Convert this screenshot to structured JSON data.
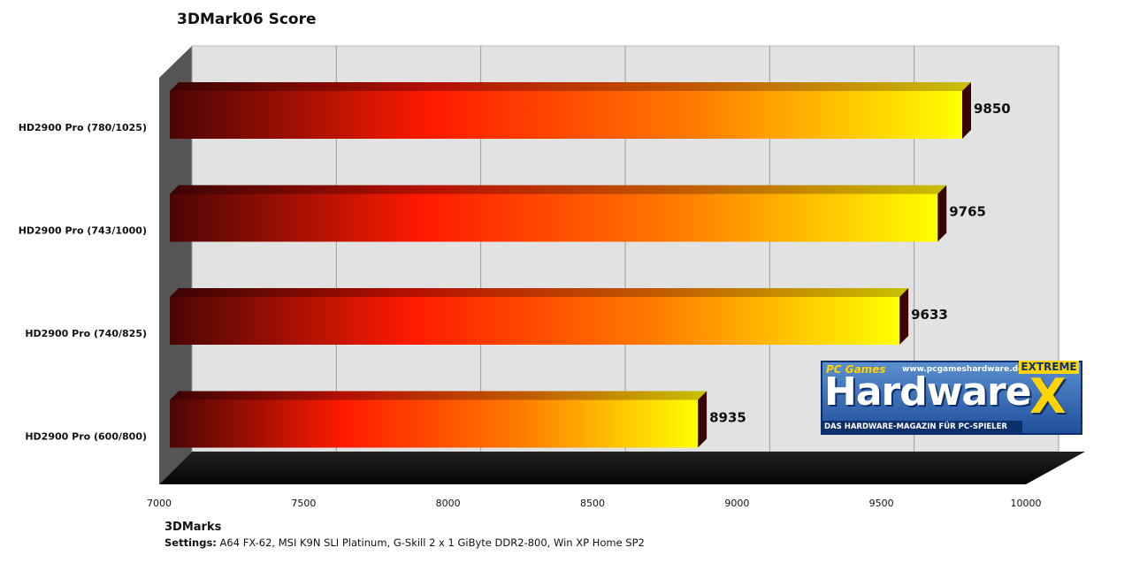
{
  "chart_data": {
    "type": "bar",
    "orientation": "horizontal",
    "style": "3d",
    "title": "3DMark06 Score",
    "xlabel": "3DMarks",
    "categories": [
      "HD2900 Pro (780/1025)",
      "HD2900 Pro (743/1000)",
      "HD2900 Pro (740/825)",
      "HD2900 Pro (600/800)"
    ],
    "values": [
      9850,
      9765,
      9633,
      8935
    ],
    "data_labels": [
      "9850",
      "9765",
      "9633",
      "8935"
    ],
    "xlim": [
      7000,
      10000
    ],
    "ticks": [
      "7000",
      "7500",
      "8000",
      "8500",
      "9000",
      "9500",
      "10000"
    ],
    "tick_values": [
      7000,
      7500,
      8000,
      8500,
      9000,
      9500,
      10000
    ],
    "grid": true,
    "legend": "none",
    "colors": {
      "bar_start": "#4a0505",
      "bar_mid": "#ff1a00",
      "bar_end": "#ffff00",
      "wall": "#e0e0e0",
      "floor": "#111111"
    }
  },
  "footer": {
    "unit": "3DMarks",
    "settings_label": "Settings:",
    "settings_text": "A64 FX-62, MSI K9N SLI Platinum, G-Skill 2 x 1 GiByte DDR2-800, Win XP Home SP2"
  },
  "logo": {
    "pc_text": "PC Games",
    "url": "www.pcgameshardware.de",
    "extreme": "EXTREME",
    "main": "Hardware",
    "x": "X",
    "sub": "DAS HARDWARE-MAGAZIN FÜR PC-SPIELER"
  }
}
